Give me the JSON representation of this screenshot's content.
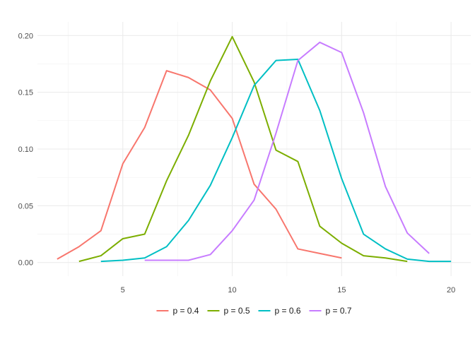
{
  "chart_data": {
    "type": "line",
    "title": "",
    "xlabel": "",
    "ylabel": "",
    "xlim": [
      1.1,
      20.9
    ],
    "ylim": [
      -0.012,
      0.212
    ],
    "x_ticks": [
      5,
      10,
      15,
      20
    ],
    "y_ticks": [
      0.0,
      0.05,
      0.1,
      0.15,
      0.2
    ],
    "x_tick_labels": [
      "5",
      "10",
      "15",
      "20"
    ],
    "y_tick_labels": [
      "0.00",
      "0.05",
      "0.10",
      "0.15",
      "0.20"
    ],
    "grid": true,
    "legend_position": "bottom",
    "series": [
      {
        "name": "p = 0.4",
        "color": "#F8766D",
        "x": [
          2,
          3,
          4,
          5,
          6,
          7,
          8,
          9,
          10,
          11,
          12,
          13,
          14,
          15
        ],
        "y": [
          0.003,
          0.014,
          0.028,
          0.087,
          0.119,
          0.169,
          0.163,
          0.152,
          0.127,
          0.069,
          0.047,
          0.012,
          0.008,
          0.004
        ]
      },
      {
        "name": "p = 0.5",
        "color": "#7CAE00",
        "x": [
          3,
          4,
          5,
          6,
          7,
          8,
          9,
          10,
          11,
          12,
          13,
          14,
          15,
          16,
          17,
          18
        ],
        "y": [
          0.001,
          0.006,
          0.021,
          0.025,
          0.072,
          0.112,
          0.16,
          0.199,
          0.159,
          0.099,
          0.089,
          0.032,
          0.017,
          0.006,
          0.004,
          0.001
        ]
      },
      {
        "name": "p = 0.6",
        "color": "#00BFC4",
        "x": [
          4,
          5,
          6,
          7,
          8,
          9,
          10,
          11,
          12,
          13,
          14,
          15,
          16,
          17,
          18,
          19,
          20
        ],
        "y": [
          0.001,
          0.002,
          0.004,
          0.014,
          0.037,
          0.068,
          0.11,
          0.156,
          0.178,
          0.179,
          0.134,
          0.074,
          0.025,
          0.012,
          0.003,
          0.001,
          0.001
        ]
      },
      {
        "name": "p = 0.7",
        "color": "#C77CFF",
        "x": [
          6,
          7,
          8,
          9,
          10,
          11,
          12,
          13,
          14,
          15,
          16,
          17,
          18,
          19
        ],
        "y": [
          0.002,
          0.002,
          0.002,
          0.007,
          0.028,
          0.055,
          0.114,
          0.178,
          0.194,
          0.185,
          0.132,
          0.067,
          0.026,
          0.008
        ]
      }
    ]
  }
}
